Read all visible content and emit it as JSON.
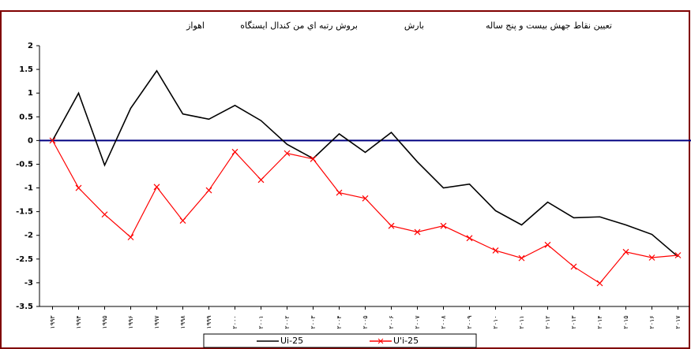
{
  "chart_data": {
    "type": "line",
    "title_parts": [
      {
        "text": "تعیین نقاط جهش بیست و پنج ساله",
        "color": "#000000"
      },
      {
        "text": "بارش",
        "color": "#ff0000"
      },
      {
        "text": "بروش رتبه اي من کندال ایستگاه",
        "color": "#000000"
      },
      {
        "text": "اهواز",
        "color": "#ff0000"
      }
    ],
    "categories": [
      "۱۹۹۳",
      "۱۹۹۴",
      "۱۹۹۵",
      "۱۹۹۶",
      "۱۹۹۷",
      "۱۹۹۸",
      "۱۹۹۹",
      "۲۰۰۰",
      "۲۰۰۱",
      "۲۰۰۲",
      "۲۰۰۳",
      "۲۰۰۴",
      "۲۰۰۵",
      "۲۰۰۶",
      "۲۰۰۷",
      "۲۰۰۸",
      "۲۰۰۹",
      "۲۰۱۰",
      "۲۰۱۱",
      "۲۰۱۲",
      "۲۰۱۳",
      "۲۰۱۴",
      "۲۰۱۵",
      "۲۰۱۶",
      "۲۰۱۷"
    ],
    "series": [
      {
        "name": "Ui-25",
        "color": "#000000",
        "marker": "none",
        "values": [
          0,
          1.0,
          -0.52,
          0.68,
          1.47,
          0.56,
          0.45,
          0.74,
          0.42,
          -0.08,
          -0.38,
          0.14,
          -0.25,
          0.17,
          -0.45,
          -1.0,
          -0.92,
          -1.48,
          -1.78,
          -1.3,
          -1.63,
          -1.61,
          -1.78,
          -1.98,
          -2.45
        ]
      },
      {
        "name": "U'i-25",
        "color": "#ff0000",
        "marker": "x",
        "values": [
          0,
          -1.0,
          -1.56,
          -2.04,
          -0.98,
          -1.69,
          -1.05,
          -0.24,
          -0.83,
          -0.27,
          -0.39,
          -1.1,
          -1.22,
          -1.8,
          -1.93,
          -1.8,
          -2.06,
          -2.32,
          -2.48,
          -2.2,
          -2.66,
          -3.01,
          -2.35,
          -2.47,
          -2.42
        ]
      }
    ],
    "ylim": [
      -3.5,
      2
    ],
    "yticks": [
      2,
      1.5,
      1,
      0.5,
      0,
      -0.5,
      -1,
      -1.5,
      -2,
      -2.5,
      -3,
      -3.5
    ],
    "zero_line_color": "#000080",
    "grid": false,
    "legend": "bottom"
  }
}
